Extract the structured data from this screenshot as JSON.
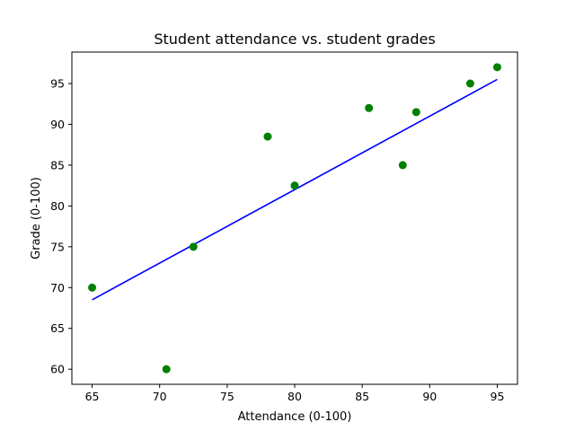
{
  "chart_data": {
    "type": "scatter",
    "title": "Student attendance vs. student grades",
    "xlabel": "Attendance (0-100)",
    "ylabel": "Grade (0-100)",
    "xlim": [
      63.5,
      96.5
    ],
    "ylim": [
      58.15,
      98.85
    ],
    "xticks": [
      65,
      70,
      75,
      80,
      85,
      90,
      95
    ],
    "yticks": [
      60,
      65,
      70,
      75,
      80,
      85,
      90,
      95
    ],
    "grid": false,
    "colors": {
      "points": "#008000",
      "fit_line": "#0000ff"
    },
    "series": [
      {
        "type": "scatter",
        "x": [
          65,
          70.5,
          72.5,
          78,
          80,
          85.5,
          88,
          89,
          93,
          95
        ],
        "y": [
          70,
          60,
          75,
          88.5,
          82.5,
          92,
          85,
          91.5,
          95,
          97
        ]
      },
      {
        "type": "line",
        "x": [
          65,
          95
        ],
        "y": [
          68.5,
          95.5
        ]
      }
    ]
  }
}
